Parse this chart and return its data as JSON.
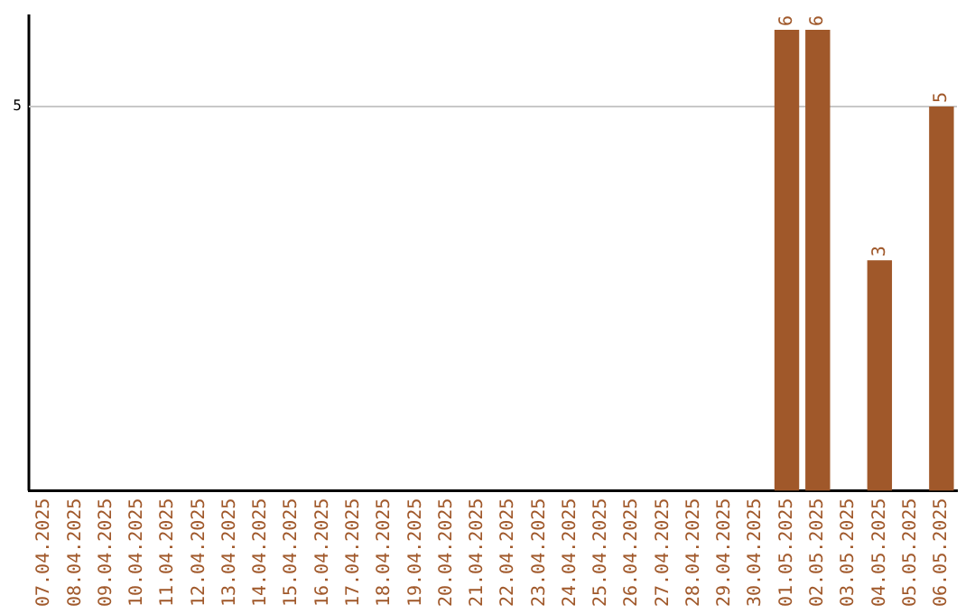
{
  "chart_data": {
    "type": "bar",
    "categories": [
      "07.04.2025",
      "08.04.2025",
      "09.04.2025",
      "10.04.2025",
      "11.04.2025",
      "12.04.2025",
      "13.04.2025",
      "14.04.2025",
      "15.04.2025",
      "16.04.2025",
      "17.04.2025",
      "18.04.2025",
      "19.04.2025",
      "20.04.2025",
      "21.04.2025",
      "22.04.2025",
      "23.04.2025",
      "24.04.2025",
      "25.04.2025",
      "26.04.2025",
      "27.04.2025",
      "28.04.2025",
      "29.04.2025",
      "30.04.2025",
      "01.05.2025",
      "02.05.2025",
      "03.05.2025",
      "04.05.2025",
      "05.05.2025",
      "06.05.2025"
    ],
    "values": [
      null,
      null,
      null,
      null,
      null,
      null,
      null,
      null,
      null,
      null,
      null,
      null,
      null,
      null,
      null,
      null,
      null,
      null,
      null,
      null,
      null,
      null,
      null,
      null,
      6,
      6,
      null,
      3,
      null,
      5
    ],
    "value_labels": [
      null,
      null,
      null,
      null,
      null,
      null,
      null,
      null,
      null,
      null,
      null,
      null,
      null,
      null,
      null,
      null,
      null,
      null,
      null,
      null,
      null,
      null,
      null,
      null,
      "6",
      "6",
      null,
      "3",
      null,
      "5"
    ],
    "ylim": [
      0,
      6.2
    ],
    "color": "#a0582a",
    "ref_lines": [
      {
        "axis": "y",
        "value": 5,
        "label": "5",
        "color": "#c8c8c8"
      }
    ],
    "legend": false
  }
}
